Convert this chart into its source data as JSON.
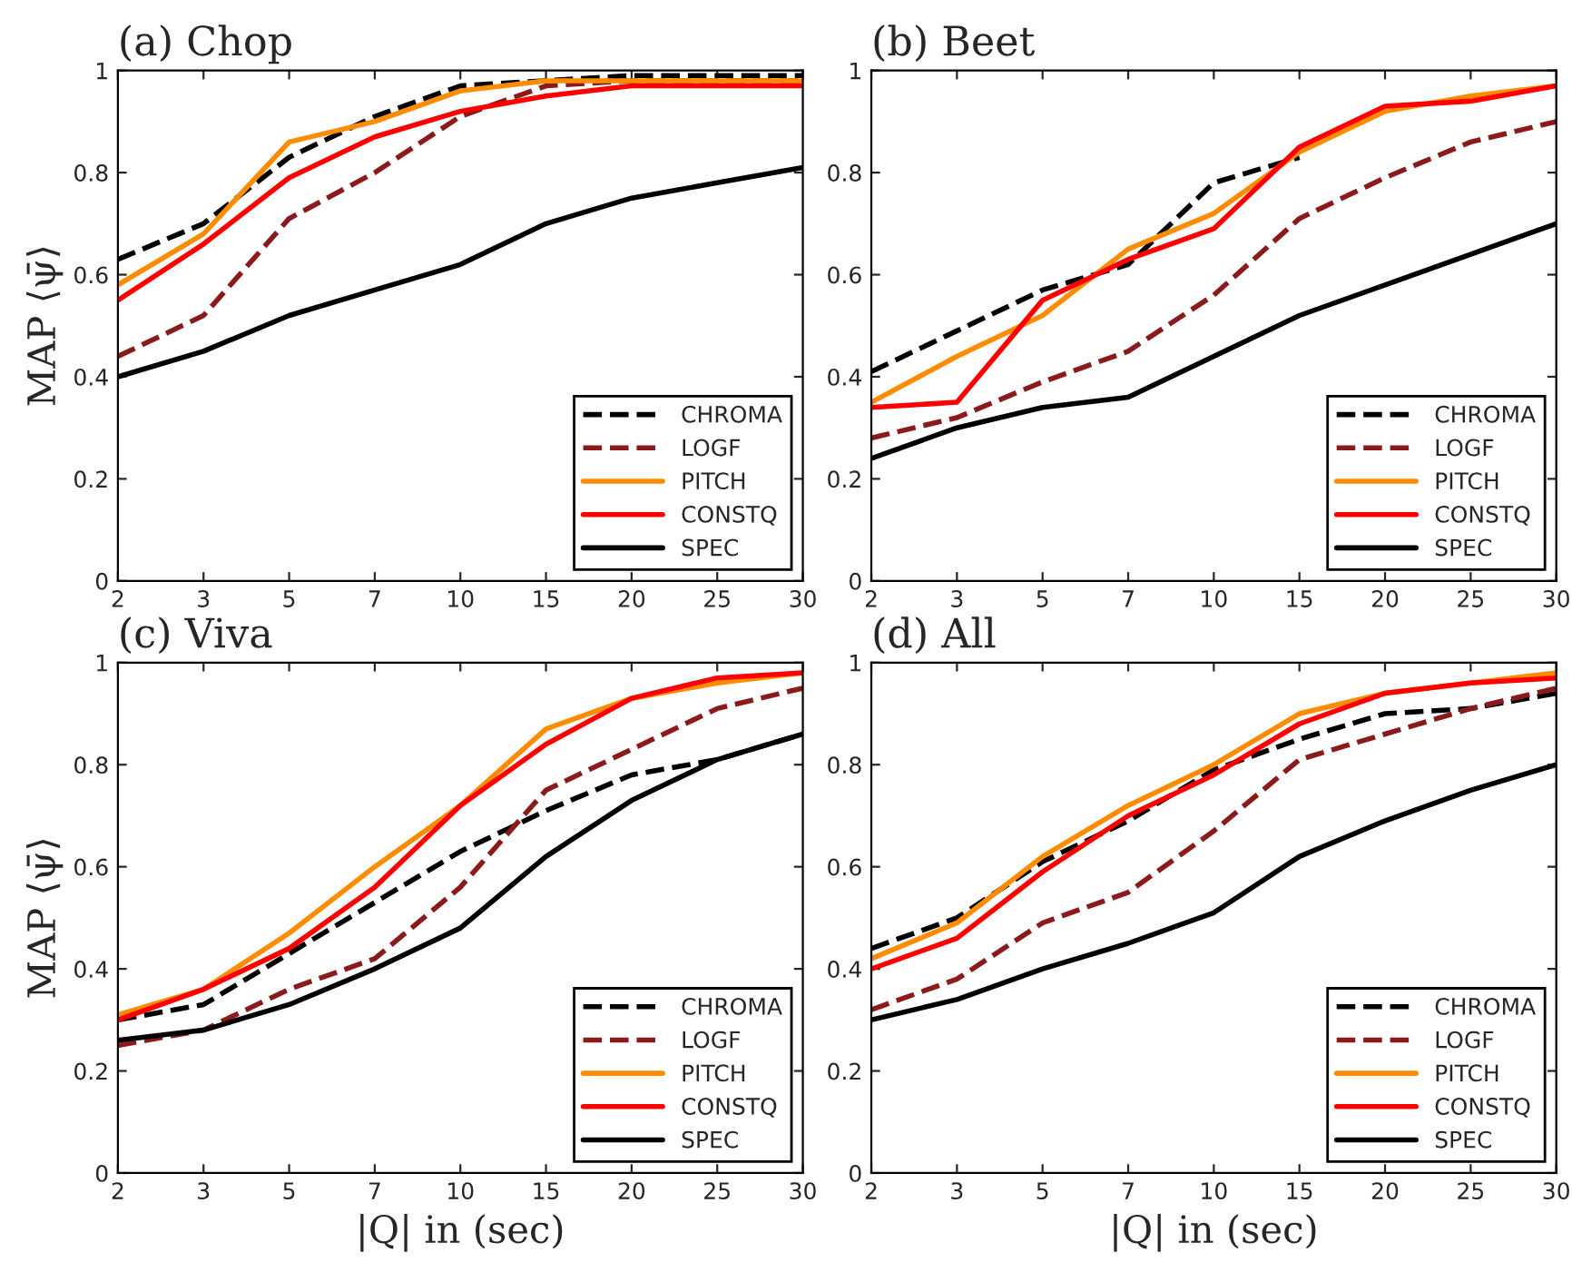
{
  "chart_data": [
    {
      "type": "line",
      "title": "(a) Chop",
      "ylabel": "MAP ⟨ψ̄⟩",
      "categories": [
        "2",
        "3",
        "5",
        "7",
        "10",
        "15",
        "20",
        "25",
        "30"
      ],
      "ylim": [
        0,
        1
      ],
      "yticks": [
        0,
        0.2,
        0.4,
        0.6,
        0.8,
        1
      ],
      "legend": "bottom right",
      "grid": false,
      "tick_labels": "xy",
      "series": [
        {
          "name": "CHROMA",
          "color": "#000000",
          "line_style": "dashed",
          "values": [
            0.63,
            0.7,
            0.83,
            0.91,
            0.97,
            0.98,
            0.99,
            0.99,
            0.99
          ]
        },
        {
          "name": "LOGF",
          "color": "#8b1a1a",
          "line_style": "dashed",
          "values": [
            0.44,
            0.52,
            0.71,
            0.8,
            0.91,
            0.97,
            0.98,
            0.98,
            0.98
          ]
        },
        {
          "name": "PITCH",
          "color": "#ff8c00",
          "line_style": "solid",
          "values": [
            0.58,
            0.68,
            0.86,
            0.9,
            0.96,
            0.98,
            0.98,
            0.98,
            0.98
          ]
        },
        {
          "name": "CONSTQ",
          "color": "#ff0000",
          "line_style": "solid",
          "values": [
            0.55,
            0.66,
            0.79,
            0.87,
            0.92,
            0.95,
            0.97,
            0.97,
            0.97
          ]
        },
        {
          "name": "SPEC",
          "color": "#000000",
          "line_style": "solid",
          "values": [
            0.4,
            0.45,
            0.52,
            0.57,
            0.62,
            0.7,
            0.75,
            0.78,
            0.81
          ]
        }
      ]
    },
    {
      "type": "line",
      "title": "(b) Beet",
      "categories": [
        "2",
        "3",
        "5",
        "7",
        "10",
        "15",
        "20",
        "25",
        "30"
      ],
      "ylim": [
        0,
        1
      ],
      "yticks": [
        0,
        0.2,
        0.4,
        0.6,
        0.8,
        1
      ],
      "legend": "bottom right",
      "grid": false,
      "series": [
        {
          "name": "CHROMA",
          "color": "#000000",
          "line_style": "dashed",
          "values": [
            0.41,
            0.49,
            0.57,
            0.62,
            0.78,
            0.83,
            null,
            null,
            null
          ]
        },
        {
          "name": "LOGF",
          "color": "#8b1a1a",
          "line_style": "dashed",
          "values": [
            0.28,
            0.32,
            0.39,
            0.45,
            0.56,
            0.71,
            0.79,
            0.86,
            0.9
          ]
        },
        {
          "name": "PITCH",
          "color": "#ff8c00",
          "line_style": "solid",
          "values": [
            0.35,
            0.44,
            0.52,
            0.65,
            0.72,
            0.84,
            0.92,
            0.95,
            0.97
          ]
        },
        {
          "name": "CONSTQ",
          "color": "#ff0000",
          "line_style": "solid",
          "values": [
            0.34,
            0.35,
            0.55,
            0.63,
            0.69,
            0.85,
            0.93,
            0.94,
            0.97
          ]
        },
        {
          "name": "SPEC",
          "color": "#000000",
          "line_style": "solid",
          "values": [
            0.24,
            0.3,
            0.34,
            0.36,
            0.44,
            0.52,
            0.58,
            0.64,
            0.7
          ]
        }
      ]
    },
    {
      "type": "line",
      "title": "(c) Viva",
      "ylabel": "MAP ⟨ψ̄⟩",
      "xlabel": "|Q| in (sec)",
      "categories": [
        "2",
        "3",
        "5",
        "7",
        "10",
        "15",
        "20",
        "25",
        "30"
      ],
      "ylim": [
        0,
        1
      ],
      "yticks": [
        0,
        0.2,
        0.4,
        0.6,
        0.8,
        1
      ],
      "legend": "bottom right",
      "grid": false,
      "series": [
        {
          "name": "CHROMA",
          "color": "#000000",
          "line_style": "dashed",
          "values": [
            0.3,
            0.33,
            0.43,
            0.53,
            0.63,
            0.71,
            0.78,
            0.81,
            0.86
          ]
        },
        {
          "name": "LOGF",
          "color": "#8b1a1a",
          "line_style": "dashed",
          "values": [
            0.25,
            0.28,
            0.36,
            0.42,
            0.56,
            0.75,
            0.83,
            0.91,
            0.95
          ]
        },
        {
          "name": "PITCH",
          "color": "#ff8c00",
          "line_style": "solid",
          "values": [
            0.31,
            0.36,
            0.47,
            0.6,
            0.72,
            0.87,
            0.93,
            0.96,
            0.98
          ]
        },
        {
          "name": "CONSTQ",
          "color": "#ff0000",
          "line_style": "solid",
          "values": [
            0.3,
            0.36,
            0.44,
            0.56,
            0.72,
            0.84,
            0.93,
            0.97,
            0.98
          ]
        },
        {
          "name": "SPEC",
          "color": "#000000",
          "line_style": "solid",
          "values": [
            0.26,
            0.28,
            0.33,
            0.4,
            0.48,
            0.62,
            0.73,
            0.81,
            0.86
          ]
        }
      ]
    },
    {
      "type": "line",
      "title": "(d) All",
      "xlabel": "|Q| in (sec)",
      "categories": [
        "2",
        "3",
        "5",
        "7",
        "10",
        "15",
        "20",
        "25",
        "30"
      ],
      "ylim": [
        0,
        1
      ],
      "yticks": [
        0,
        0.2,
        0.4,
        0.6,
        0.8,
        1
      ],
      "legend": "bottom right",
      "grid": false,
      "series": [
        {
          "name": "CHROMA",
          "color": "#000000",
          "line_style": "dashed",
          "values": [
            0.44,
            0.5,
            0.61,
            0.69,
            0.79,
            0.85,
            0.9,
            0.91,
            0.94
          ]
        },
        {
          "name": "LOGF",
          "color": "#8b1a1a",
          "line_style": "dashed",
          "values": [
            0.32,
            0.38,
            0.49,
            0.55,
            0.67,
            0.81,
            0.86,
            0.91,
            0.95
          ]
        },
        {
          "name": "PITCH",
          "color": "#ff8c00",
          "line_style": "solid",
          "values": [
            0.42,
            0.49,
            0.62,
            0.72,
            0.8,
            0.9,
            0.94,
            0.96,
            0.98
          ]
        },
        {
          "name": "CONSTQ",
          "color": "#ff0000",
          "line_style": "solid",
          "values": [
            0.4,
            0.46,
            0.59,
            0.7,
            0.78,
            0.88,
            0.94,
            0.96,
            0.97
          ]
        },
        {
          "name": "SPEC",
          "color": "#000000",
          "line_style": "solid",
          "values": [
            0.3,
            0.34,
            0.4,
            0.45,
            0.51,
            0.62,
            0.69,
            0.75,
            0.8
          ]
        }
      ]
    }
  ]
}
